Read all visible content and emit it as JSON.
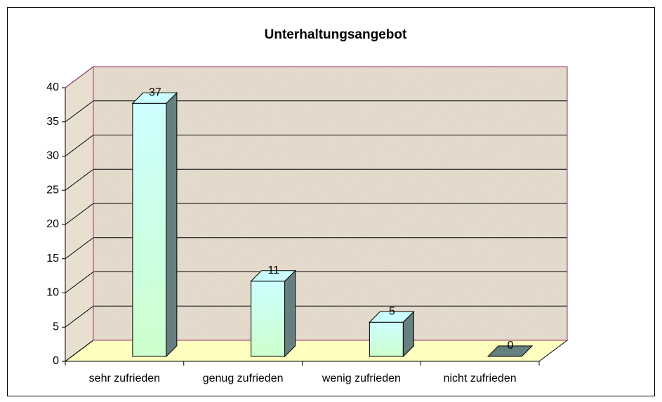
{
  "chart_data": {
    "type": "bar3d",
    "title": "Unterhaltungsangebot",
    "categories": [
      "sehr zufrieden",
      "genug zufrieden",
      "wenig zufrieden",
      "nicht zufrieden"
    ],
    "values": [
      37,
      11,
      5,
      0
    ],
    "ylim": [
      0,
      40
    ],
    "yticks": [
      0,
      5,
      10,
      15,
      20,
      25,
      30,
      35,
      40
    ],
    "grid": true,
    "color_top": "#ccffff",
    "color_bottom": "#ccffcc",
    "side_color": "#668080",
    "wall_color": "#e8dfd0",
    "floor_color": "#ffffc0"
  }
}
